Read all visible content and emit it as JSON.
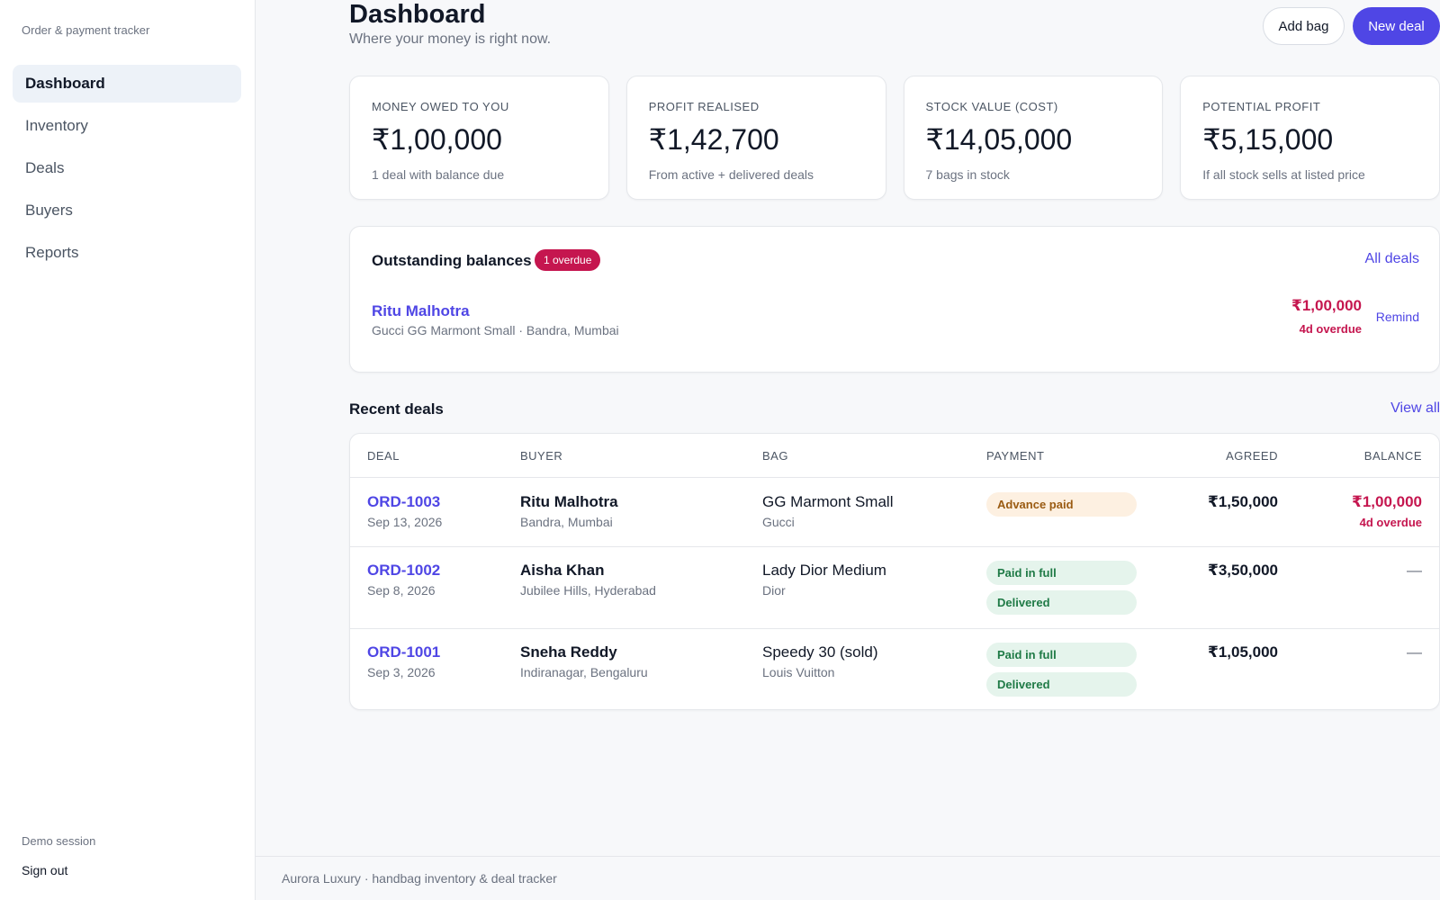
{
  "sidebar": {
    "tagline": "Order & payment tracker",
    "items": [
      {
        "label": "Dashboard",
        "active": true
      },
      {
        "label": "Inventory"
      },
      {
        "label": "Deals"
      },
      {
        "label": "Buyers"
      },
      {
        "label": "Reports"
      }
    ],
    "session": "Demo session",
    "sign_out": "Sign out"
  },
  "header": {
    "title": "Dashboard",
    "subtitle": "Where your money is right now.",
    "add_bag": "Add bag",
    "new_deal": "New deal"
  },
  "stats": [
    {
      "label": "MONEY OWED TO YOU",
      "value": "₹1,00,000",
      "note": "1 deal with balance due"
    },
    {
      "label": "PROFIT REALISED",
      "value": "₹1,42,700",
      "note": "From active + delivered deals"
    },
    {
      "label": "STOCK VALUE (COST)",
      "value": "₹14,05,000",
      "note": "7 bags in stock"
    },
    {
      "label": "POTENTIAL PROFIT",
      "value": "₹5,15,000",
      "note": "If all stock sells at listed price"
    }
  ],
  "outstanding": {
    "title": "Outstanding balances",
    "badge": "1 overdue",
    "all_deals": "All deals",
    "item": {
      "name": "Ritu Malhotra",
      "detail": "Gucci GG Marmont Small · Bandra, Mumbai",
      "amount": "₹1,00,000",
      "overdue": "4d overdue",
      "remind": "Remind"
    }
  },
  "recent": {
    "title": "Recent deals",
    "view_all": "View all",
    "columns": {
      "deal": "DEAL",
      "buyer": "BUYER",
      "bag": "BAG",
      "payment": "PAYMENT",
      "agreed": "AGREED",
      "balance": "BALANCE"
    },
    "rows": [
      {
        "id": "ORD-1003",
        "date": "Sep 13, 2026",
        "buyer": "Ritu Malhotra",
        "location": "Bandra, Mumbai",
        "bag": "GG Marmont Small",
        "brand": "Gucci",
        "status1": "Advance paid",
        "status2": "",
        "agreed": "₹1,50,000",
        "balance": "₹1,00,000",
        "balance_note": "4d overdue"
      },
      {
        "id": "ORD-1002",
        "date": "Sep 8, 2026",
        "buyer": "Aisha Khan",
        "location": "Jubilee Hills, Hyderabad",
        "bag": "Lady Dior Medium",
        "brand": "Dior",
        "status1": "Paid in full",
        "status2": "Delivered",
        "agreed": "₹3,50,000",
        "balance": "—",
        "balance_note": ""
      },
      {
        "id": "ORD-1001",
        "date": "Sep 3, 2026",
        "buyer": "Sneha Reddy",
        "location": "Indiranagar, Bengaluru",
        "bag": "Speedy 30 (sold)",
        "brand": "Louis Vuitton",
        "status1": "Paid in full",
        "status2": "Delivered",
        "agreed": "₹1,05,000",
        "balance": "—",
        "balance_note": ""
      }
    ]
  },
  "footer": "Aurora Luxury · handbag inventory & deal tracker"
}
